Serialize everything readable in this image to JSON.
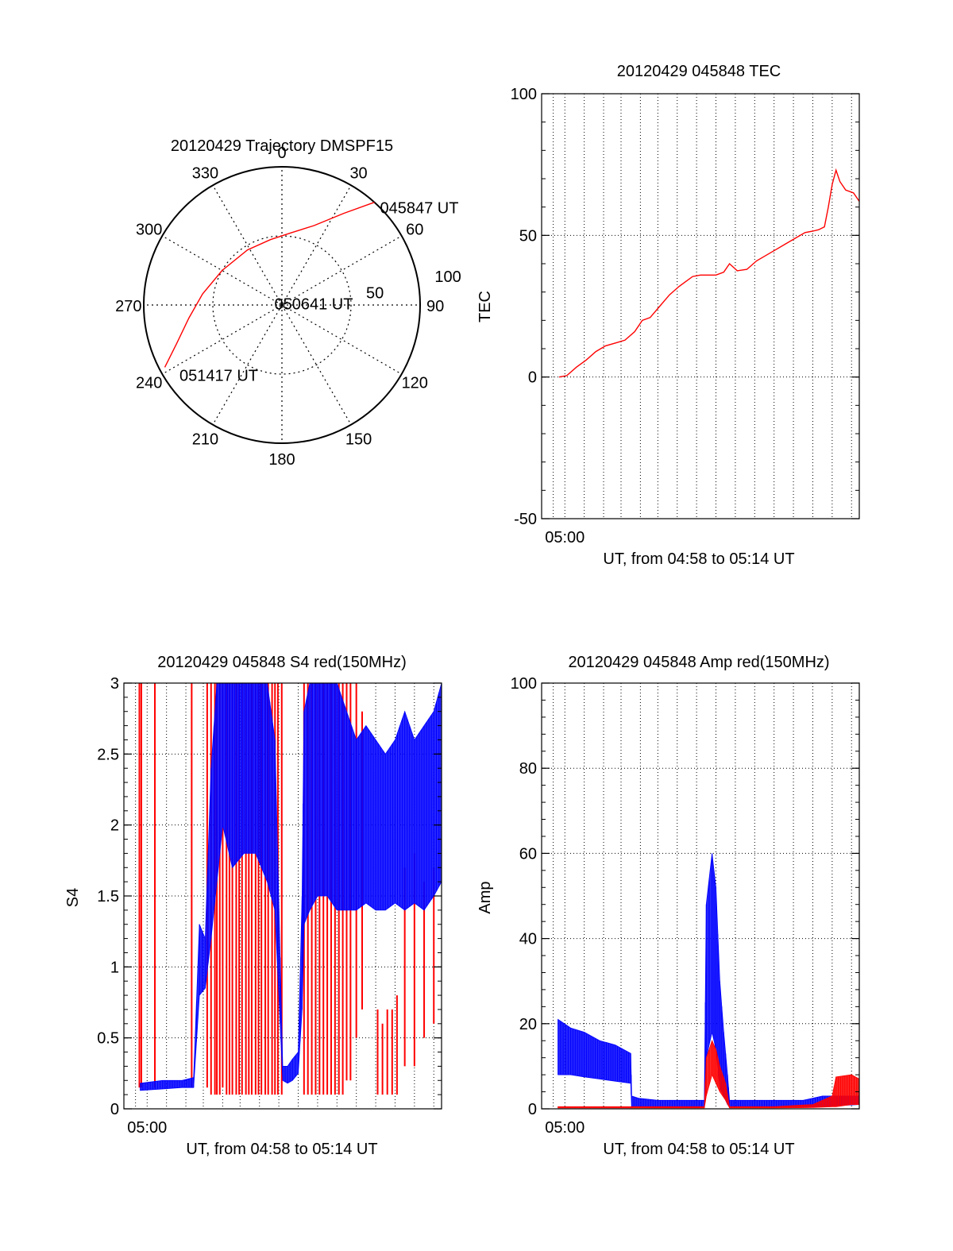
{
  "chart_data": [
    {
      "type": "scatter",
      "projection": "polar",
      "title": "20120429 Trajectory DMSPF15",
      "angle_labels": [
        "0",
        "30",
        "60",
        "90",
        "120",
        "150",
        "180",
        "210",
        "240",
        "270",
        "300",
        "330"
      ],
      "radius_labels": [
        "50",
        "100"
      ],
      "rmax": 100,
      "zero_direction": "top",
      "direction": "clockwise",
      "grid": true,
      "series": [
        {
          "color": "#ff0000",
          "points": [
            {
              "az": 42,
              "r": 100
            },
            {
              "az": 34,
              "r": 80
            },
            {
              "az": 22,
              "r": 62
            },
            {
              "az": 8,
              "r": 53
            },
            {
              "az": 350,
              "r": 48
            },
            {
              "az": 328,
              "r": 47
            },
            {
              "az": 300,
              "r": 50
            },
            {
              "az": 278,
              "r": 58
            },
            {
              "az": 262,
              "r": 68
            },
            {
              "az": 250,
              "r": 81
            },
            {
              "az": 242,
              "r": 96
            }
          ]
        }
      ],
      "annotations": [
        {
          "text": "045847 UT",
          "az": 45,
          "r": 102
        },
        {
          "text": "050641 UT",
          "az": 300,
          "r": 5
        },
        {
          "text": "051417 UT",
          "az": 236,
          "r": 88
        }
      ]
    },
    {
      "type": "line",
      "title": "20120429 045848 TEC",
      "xlabel": "UT, from 04:58 to 05:14 UT",
      "ylabel": "TEC",
      "xlim": [
        0,
        16.4
      ],
      "ylim": [
        -50,
        100
      ],
      "y_ticks": [
        -50,
        0,
        50,
        100
      ],
      "x_tick_labels": [
        {
          "x": 1.2,
          "label": "05:00"
        }
      ],
      "vgrid_minutes": [
        0.6,
        1.2,
        2.2,
        3.2,
        4.1,
        5.1,
        6.0,
        7.0,
        8.0,
        9.0,
        10.0,
        11.0,
        12.0,
        13.0,
        14.0,
        15.0,
        16.0
      ],
      "hgrid": [
        0,
        50
      ],
      "series": [
        {
          "color": "#ff0000",
          "x": [
            0.9,
            1.3,
            1.8,
            2.3,
            2.8,
            3.3,
            3.8,
            4.3,
            4.8,
            5.2,
            5.6,
            6.1,
            6.6,
            7.1,
            7.5,
            7.8,
            8.2,
            8.6,
            9.0,
            9.4,
            9.7,
            10.1,
            10.6,
            11.1,
            11.6,
            12.1,
            12.6,
            13.1,
            13.6,
            14.0,
            14.3,
            14.6,
            14.8,
            15.0,
            15.2,
            15.4,
            15.7,
            16.1,
            16.4
          ],
          "y": [
            0,
            0.5,
            3.5,
            6,
            9,
            11,
            12,
            13,
            16,
            20,
            21,
            25,
            29,
            32,
            34,
            35.5,
            36,
            36,
            36,
            37,
            40,
            37.5,
            38,
            41,
            43,
            45,
            47,
            49,
            51,
            51.5,
            52,
            53,
            60,
            68,
            73,
            69,
            66,
            65,
            62
          ]
        }
      ]
    },
    {
      "type": "line",
      "title": "20120429 045848 S4 red(150MHz)",
      "xlabel": "UT, from 04:58 to 05:14 UT",
      "ylabel": "S4",
      "xlim": [
        0,
        16.4
      ],
      "ylim": [
        0,
        3
      ],
      "y_ticks": [
        0,
        0.5,
        1,
        1.5,
        2,
        2.5,
        3
      ],
      "x_tick_labels": [
        {
          "x": 1.2,
          "label": "05:00"
        }
      ],
      "vgrid_minutes": [
        0.6,
        1.2,
        2.2,
        3.2,
        4.1,
        5.1,
        6.0,
        7.0,
        8.0,
        9.0,
        10.0,
        11.0,
        12.0,
        13.0,
        14.0,
        15.0,
        16.0
      ],
      "hgrid": [
        0.5,
        1,
        1.5,
        2,
        2.5
      ],
      "series": [
        {
          "color": "#ff0000",
          "kind": "spikes",
          "spikes": [
            {
              "x": 0.8,
              "y0": 0.15,
              "y1": 3
            },
            {
              "x": 0.9,
              "y0": 0.15,
              "y1": 3
            },
            {
              "x": 1.6,
              "y0": 0.15,
              "y1": 3
            },
            {
              "x": 3.5,
              "y0": 0.15,
              "y1": 3
            },
            {
              "x": 4.3,
              "y0": 0.15,
              "y1": 3
            },
            {
              "x": 4.5,
              "y0": 0.1,
              "y1": 3
            },
            {
              "x": 4.7,
              "y0": 0.1,
              "y1": 3
            },
            {
              "x": 4.8,
              "y0": 0.1,
              "y1": 3
            },
            {
              "x": 4.95,
              "y0": 0.1,
              "y1": 3
            },
            {
              "x": 5.1,
              "y0": 0.15,
              "y1": 3
            },
            {
              "x": 5.3,
              "y0": 0.1,
              "y1": 3
            },
            {
              "x": 5.45,
              "y0": 0.1,
              "y1": 3
            },
            {
              "x": 5.6,
              "y0": 0.1,
              "y1": 3
            },
            {
              "x": 5.8,
              "y0": 0.1,
              "y1": 3
            },
            {
              "x": 5.95,
              "y0": 0.1,
              "y1": 3
            },
            {
              "x": 6.1,
              "y0": 0.1,
              "y1": 3
            },
            {
              "x": 6.3,
              "y0": 0.1,
              "y1": 3
            },
            {
              "x": 6.45,
              "y0": 0.1,
              "y1": 3
            },
            {
              "x": 6.6,
              "y0": 0.1,
              "y1": 3
            },
            {
              "x": 6.8,
              "y0": 0.1,
              "y1": 3
            },
            {
              "x": 6.95,
              "y0": 0.1,
              "y1": 3
            },
            {
              "x": 7.1,
              "y0": 0.1,
              "y1": 3
            },
            {
              "x": 7.3,
              "y0": 0.1,
              "y1": 3
            },
            {
              "x": 7.45,
              "y0": 0.1,
              "y1": 3
            },
            {
              "x": 7.65,
              "y0": 0.1,
              "y1": 3
            },
            {
              "x": 7.8,
              "y0": 0.1,
              "y1": 3
            },
            {
              "x": 7.95,
              "y0": 0.1,
              "y1": 3
            },
            {
              "x": 8.15,
              "y0": 0.1,
              "y1": 3
            },
            {
              "x": 9.3,
              "y0": 0.1,
              "y1": 3
            },
            {
              "x": 9.5,
              "y0": 0.1,
              "y1": 3
            },
            {
              "x": 9.7,
              "y0": 0.1,
              "y1": 3
            },
            {
              "x": 9.9,
              "y0": 0.1,
              "y1": 3
            },
            {
              "x": 10.1,
              "y0": 0.1,
              "y1": 3
            },
            {
              "x": 10.3,
              "y0": 0.1,
              "y1": 3
            },
            {
              "x": 10.5,
              "y0": 0.1,
              "y1": 3
            },
            {
              "x": 10.7,
              "y0": 0.1,
              "y1": 3
            },
            {
              "x": 10.9,
              "y0": 0.1,
              "y1": 3
            },
            {
              "x": 11.1,
              "y0": 0.1,
              "y1": 3
            },
            {
              "x": 11.3,
              "y0": 0.1,
              "y1": 3
            },
            {
              "x": 11.5,
              "y0": 0.2,
              "y1": 3
            },
            {
              "x": 11.7,
              "y0": 0.2,
              "y1": 3
            },
            {
              "x": 12.0,
              "y0": 0.5,
              "y1": 3
            },
            {
              "x": 12.3,
              "y0": 0.7,
              "y1": 2.8
            },
            {
              "x": 13.1,
              "y0": 0.1,
              "y1": 0.7
            },
            {
              "x": 13.35,
              "y0": 0.1,
              "y1": 0.6
            },
            {
              "x": 13.6,
              "y0": 0.1,
              "y1": 0.7
            },
            {
              "x": 13.85,
              "y0": 0.1,
              "y1": 0.7
            },
            {
              "x": 14.1,
              "y0": 0.1,
              "y1": 0.8
            },
            {
              "x": 14.5,
              "y0": 0.3,
              "y1": 1.7
            },
            {
              "x": 15.0,
              "y0": 0.3,
              "y1": 1.8
            },
            {
              "x": 15.5,
              "y0": 0.5,
              "y1": 1.6
            },
            {
              "x": 16.0,
              "y0": 0.6,
              "y1": 1.7
            }
          ]
        },
        {
          "color": "#0000ff",
          "kind": "band",
          "x": [
            0.85,
            2.0,
            3.0,
            3.6,
            3.9,
            4.2,
            4.5,
            4.8,
            5.1,
            5.6,
            6.2,
            6.8,
            7.4,
            7.8,
            8.2,
            8.45,
            8.7,
            9.0,
            9.2,
            9.3,
            9.6,
            10.0,
            10.5,
            11.0,
            11.5,
            12.0,
            12.5,
            13.0,
            13.5,
            14.0,
            14.5,
            15.0,
            15.5,
            16.0,
            16.4
          ],
          "low": [
            0.13,
            0.14,
            0.15,
            0.15,
            0.8,
            0.85,
            1.2,
            1.6,
            2.0,
            1.7,
            1.8,
            1.8,
            1.6,
            1.4,
            0.2,
            0.18,
            0.2,
            0.25,
            0.7,
            1.3,
            1.4,
            1.5,
            1.5,
            1.4,
            1.4,
            1.4,
            1.45,
            1.4,
            1.4,
            1.45,
            1.4,
            1.45,
            1.4,
            1.5,
            1.6
          ],
          "high": [
            0.18,
            0.2,
            0.2,
            0.22,
            1.3,
            1.2,
            2.4,
            3.0,
            3.0,
            3.0,
            3.0,
            3.0,
            3.0,
            2.6,
            0.3,
            0.3,
            0.35,
            0.4,
            1.5,
            2.8,
            3.0,
            3.0,
            3.0,
            3.0,
            2.8,
            2.6,
            2.7,
            2.6,
            2.5,
            2.6,
            2.8,
            2.6,
            2.7,
            2.8,
            3.0
          ]
        }
      ]
    },
    {
      "type": "line",
      "title": "20120429 045848 Amp red(150MHz)",
      "xlabel": "UT, from 04:58 to 05:14 UT",
      "ylabel": "Amp",
      "xlim": [
        0,
        16.4
      ],
      "ylim": [
        0,
        100
      ],
      "y_ticks": [
        0,
        20,
        40,
        60,
        80,
        100
      ],
      "x_tick_labels": [
        {
          "x": 1.2,
          "label": "05:00"
        }
      ],
      "vgrid_minutes": [
        0.6,
        1.2,
        2.2,
        3.2,
        4.1,
        5.1,
        6.0,
        7.0,
        8.0,
        9.0,
        10.0,
        11.0,
        12.0,
        13.0,
        14.0,
        15.0,
        16.0
      ],
      "hgrid": [
        20,
        40,
        60,
        80
      ],
      "series": [
        {
          "color": "#0000ff",
          "kind": "band",
          "x": [
            0.85,
            1.5,
            2.2,
            3.0,
            3.8,
            4.6,
            4.65,
            5.0,
            6.0,
            7.0,
            8.0,
            8.4,
            8.5,
            8.8,
            9.0,
            9.2,
            9.4,
            9.6,
            9.7,
            10.5,
            11.5,
            12.5,
            13.5,
            14.5,
            15.5,
            16.4
          ],
          "low": [
            8,
            8,
            7.5,
            7,
            6.5,
            6,
            0.5,
            0.5,
            0.3,
            0.3,
            0.3,
            0.5,
            12,
            18,
            14,
            5,
            3,
            1,
            0.5,
            0.5,
            0.5,
            0.5,
            0.5,
            0.5,
            0.8,
            1
          ],
          "high": [
            21,
            19,
            18,
            16,
            15,
            13,
            3,
            2.5,
            2,
            2,
            2,
            2,
            48,
            60,
            52,
            30,
            18,
            8,
            2,
            2,
            2,
            2,
            2,
            3,
            3,
            3
          ]
        },
        {
          "color": "#ff0000",
          "kind": "band",
          "x": [
            0.85,
            4.6,
            4.7,
            8.4,
            8.5,
            8.8,
            9.0,
            9.2,
            9.5,
            9.7,
            12.0,
            14.0,
            15.0,
            15.2,
            16.0,
            16.4
          ],
          "low": [
            0.2,
            0.2,
            0.2,
            0.2,
            3,
            8,
            6,
            4,
            2,
            0.2,
            0.2,
            0.3,
            0.5,
            0.5,
            1,
            1
          ],
          "high": [
            0.5,
            0.5,
            0.5,
            0.5,
            12,
            16,
            14,
            10,
            6,
            0.5,
            0.5,
            1,
            3,
            7.5,
            8,
            7
          ]
        }
      ]
    }
  ]
}
